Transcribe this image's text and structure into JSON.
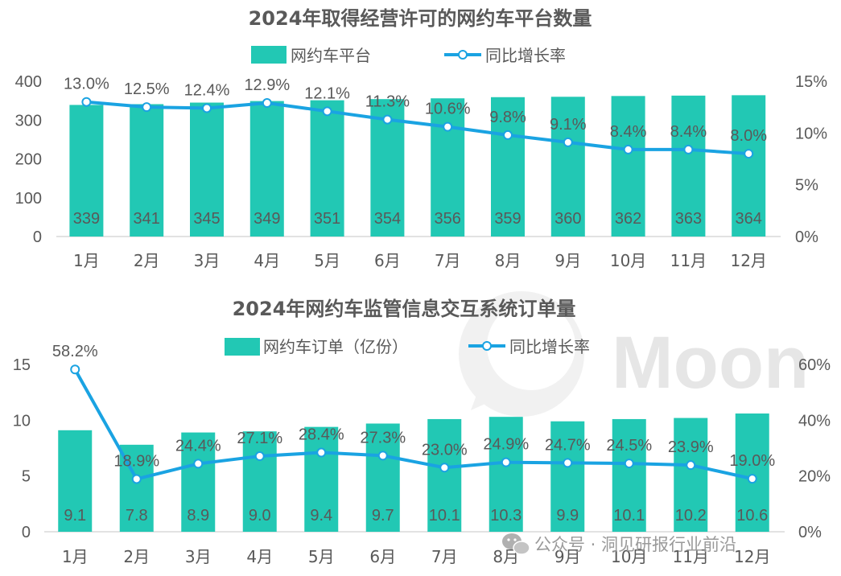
{
  "colors": {
    "bar": "#22c8b4",
    "line": "#1aa3e2",
    "marker_fill": "#ffffff",
    "text": "#595959",
    "axis": "#d9d9d9"
  },
  "chart_data": [
    {
      "type": "bar+line",
      "title": "2024年取得经营许可的网约车平台数量",
      "legend_position": "top",
      "categories": [
        "1月",
        "2月",
        "3月",
        "4月",
        "5月",
        "6月",
        "7月",
        "8月",
        "9月",
        "10月",
        "11月",
        "12月"
      ],
      "series": [
        {
          "name": "网约车平台",
          "kind": "bar",
          "axis": "left",
          "values": [
            339,
            341,
            345,
            349,
            351,
            354,
            356,
            359,
            360,
            362,
            363,
            364
          ],
          "labels": [
            "339",
            "341",
            "345",
            "349",
            "351",
            "354",
            "356",
            "359",
            "360",
            "362",
            "363",
            "364"
          ]
        },
        {
          "name": "同比增长率",
          "kind": "line",
          "axis": "right",
          "values": [
            13.0,
            12.5,
            12.4,
            12.9,
            12.1,
            11.3,
            10.6,
            9.8,
            9.1,
            8.4,
            8.4,
            8.0
          ],
          "labels": [
            "13.0%",
            "12.5%",
            "12.4%",
            "12.9%",
            "12.1%",
            "11.3%",
            "10.6%",
            "9.8%",
            "9.1%",
            "8.4%",
            "8.4%",
            "8.0%"
          ]
        }
      ],
      "ylim_left": [
        0,
        400
      ],
      "ylim_right": [
        0,
        15
      ],
      "left_ticks": [
        "0",
        "100",
        "200",
        "300",
        "400"
      ],
      "right_ticks": [
        "0%",
        "5%",
        "10%",
        "15%"
      ],
      "grid": false
    },
    {
      "type": "bar+line",
      "title": "2024年网约车监管信息交互系统订单量",
      "legend_position": "top",
      "categories": [
        "1月",
        "2月",
        "3月",
        "4月",
        "5月",
        "6月",
        "7月",
        "8月",
        "9月",
        "10月",
        "11月",
        "12月"
      ],
      "series": [
        {
          "name": "网约车订单（亿份）",
          "kind": "bar",
          "axis": "left",
          "values": [
            9.1,
            7.8,
            8.9,
            9.0,
            9.4,
            9.7,
            10.1,
            10.3,
            9.9,
            10.1,
            10.2,
            10.6
          ],
          "labels": [
            "9.1",
            "7.8",
            "8.9",
            "9.0",
            "9.4",
            "9.7",
            "10.1",
            "10.3",
            "9.9",
            "10.1",
            "10.2",
            "10.6"
          ]
        },
        {
          "name": "同比增长率",
          "kind": "line",
          "axis": "right",
          "values": [
            58.2,
            18.9,
            24.4,
            27.1,
            28.4,
            27.3,
            23.0,
            24.9,
            24.7,
            24.5,
            23.9,
            19.0
          ],
          "labels": [
            "58.2%",
            "18.9%",
            "24.4%",
            "27.1%",
            "28.4%",
            "27.3%",
            "23.0%",
            "24.9%",
            "24.7%",
            "24.5%",
            "23.9%",
            "19.0%"
          ]
        }
      ],
      "ylim_left": [
        0,
        15
      ],
      "ylim_right": [
        0,
        60
      ],
      "left_ticks": [
        "0",
        "5",
        "10",
        "15"
      ],
      "right_ticks": [
        "0%",
        "20%",
        "40%",
        "60%"
      ],
      "grid": false
    }
  ],
  "watermark": {
    "text": "Moon",
    "source": "公众号 · 洞见研报行业前沿",
    "icon": "wechat-icon"
  }
}
